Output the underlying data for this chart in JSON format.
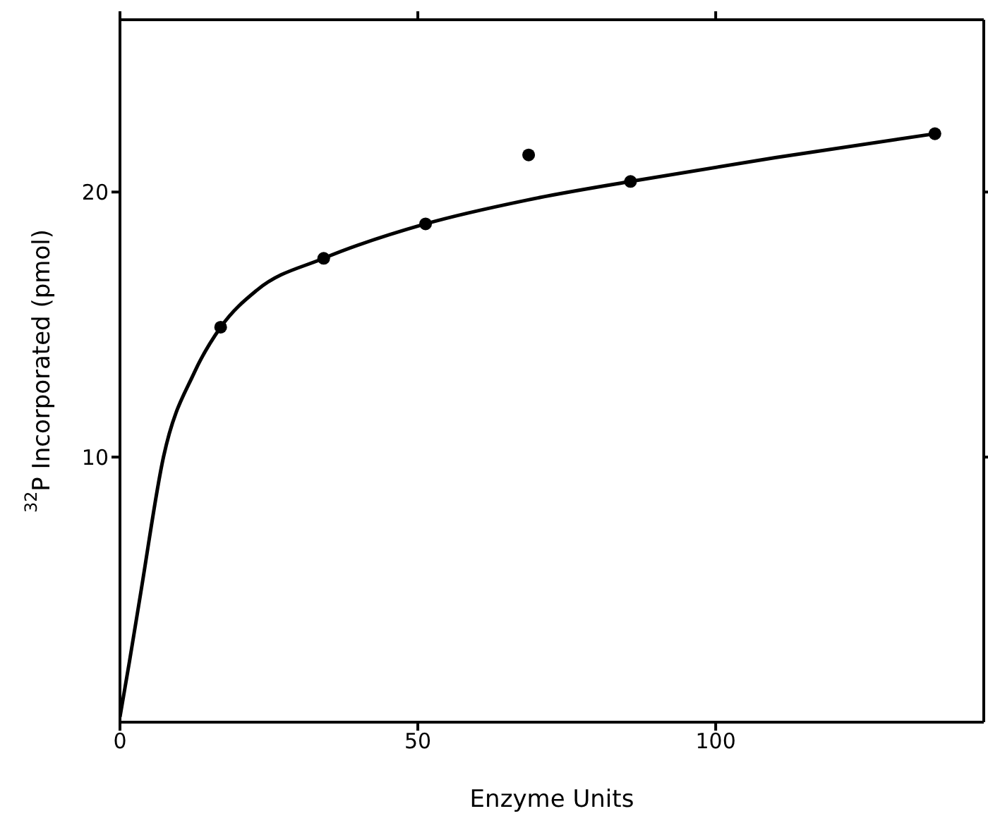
{
  "chart_data": {
    "type": "scatter",
    "xlabel": "Enzyme Units",
    "ylabel": "$^{32}$P Incorporated (pmol)",
    "xlim": [
      0,
      145
    ],
    "ylim": [
      0,
      26.5
    ],
    "xticks": [
      0,
      50,
      100
    ],
    "yticks": [
      10,
      20
    ],
    "series": [
      {
        "marker": "circle",
        "color": "#000000",
        "x": [
          16.9,
          34.2,
          51.3,
          68.6,
          85.7,
          136.8
        ],
        "values": [
          14.9,
          17.5,
          18.8,
          21.4,
          20.4,
          22.2
        ]
      },
      {
        "type": "line",
        "marker": "none",
        "line_style": "solid",
        "color": "#000000",
        "x": [
          0,
          1.6,
          3.5,
          7.3,
          12.5,
          16.9,
          23,
          34.2,
          51.3,
          68.4,
          85.7,
          110,
          136.8
        ],
        "values": [
          0.2,
          2.3,
          4.9,
          10,
          13.2,
          14.9,
          16.3,
          17.5,
          18.8,
          19.7,
          20.4,
          21.3,
          22.2
        ]
      }
    ]
  }
}
